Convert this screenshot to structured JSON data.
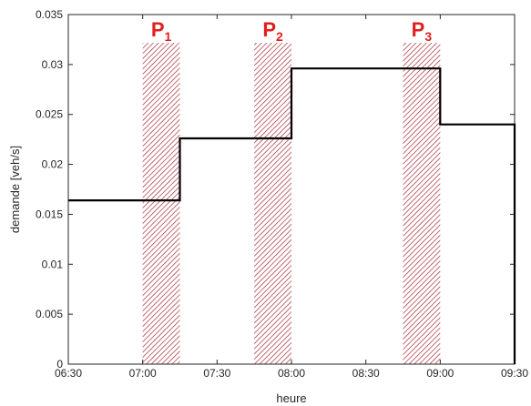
{
  "chart_data": {
    "type": "line",
    "step": true,
    "xlabel": "heure",
    "ylabel": "demande [veh/s]",
    "x_ticks": [
      "06:30",
      "07:00",
      "07:30",
      "08:00",
      "08:30",
      "09:00",
      "09:30"
    ],
    "xlim": [
      "06:30",
      "09:30"
    ],
    "y_ticks": [
      "0",
      "0.005",
      "0.01",
      "0.015",
      "0.02",
      "0.025",
      "0.03",
      "0.035"
    ],
    "ylim": [
      0,
      0.035
    ],
    "grid": false,
    "series": [
      {
        "color": "#000000",
        "points": [
          {
            "x": "06:30",
            "y": 0.0164
          },
          {
            "x": "07:15",
            "y": 0.0164
          },
          {
            "x": "07:15",
            "y": 0.0226
          },
          {
            "x": "08:00",
            "y": 0.0226
          },
          {
            "x": "08:00",
            "y": 0.0296
          },
          {
            "x": "09:00",
            "y": 0.0296
          },
          {
            "x": "09:00",
            "y": 0.024
          },
          {
            "x": "09:30",
            "y": 0.024
          },
          {
            "x": "09:30",
            "y": 0
          }
        ]
      }
    ],
    "periods": [
      {
        "label": "P",
        "sub": "1",
        "start": "07:00",
        "end": "07:15"
      },
      {
        "label": "P",
        "sub": "2",
        "start": "07:45",
        "end": "08:00"
      },
      {
        "label": "P",
        "sub": "3",
        "start": "08:45",
        "end": "09:00"
      }
    ],
    "colors": {
      "line": "#000000",
      "hatch": "#a52a36",
      "period_label": "#e0201f"
    }
  }
}
